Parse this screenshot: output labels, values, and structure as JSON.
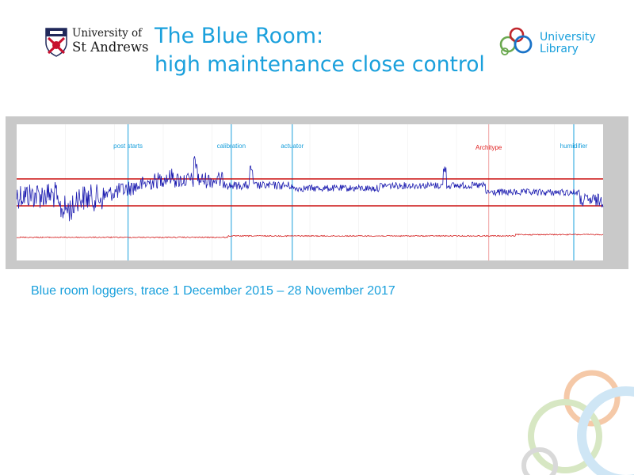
{
  "logo_left": {
    "line1": "University of",
    "line2": "St Andrews",
    "icon": "st-andrews-crest-icon"
  },
  "title": {
    "line1": "The Blue Room:",
    "line2": "high maintenance close control"
  },
  "logo_right": {
    "line1": "University",
    "line2": "Library",
    "icon": "rings-logo-icon"
  },
  "caption": "Blue room loggers,  trace 1 December 2015 – 28 November 2017",
  "chart_data": {
    "type": "line",
    "annotations": [
      {
        "label": "post starts",
        "x_frac": 0.19,
        "color": "#1aa0dc"
      },
      {
        "label": "calibration",
        "x_frac": 0.366,
        "color": "#1aa0dc"
      },
      {
        "label": "actuator",
        "x_frac": 0.47,
        "color": "#1aa0dc"
      },
      {
        "label": "Architype",
        "x_frac": 0.805,
        "color": "#e02020"
      },
      {
        "label": "humidifier",
        "x_frac": 0.95,
        "color": "#1aa0dc"
      }
    ],
    "series": [
      {
        "color": "#1c1cb0"
      },
      {
        "color": "#d42020"
      }
    ],
    "colors": {
      "limit_lines": "#cc1111",
      "frame": "#c8c8c8",
      "annotation": "#1aa0dc",
      "architype": "#f0a0a0"
    }
  }
}
